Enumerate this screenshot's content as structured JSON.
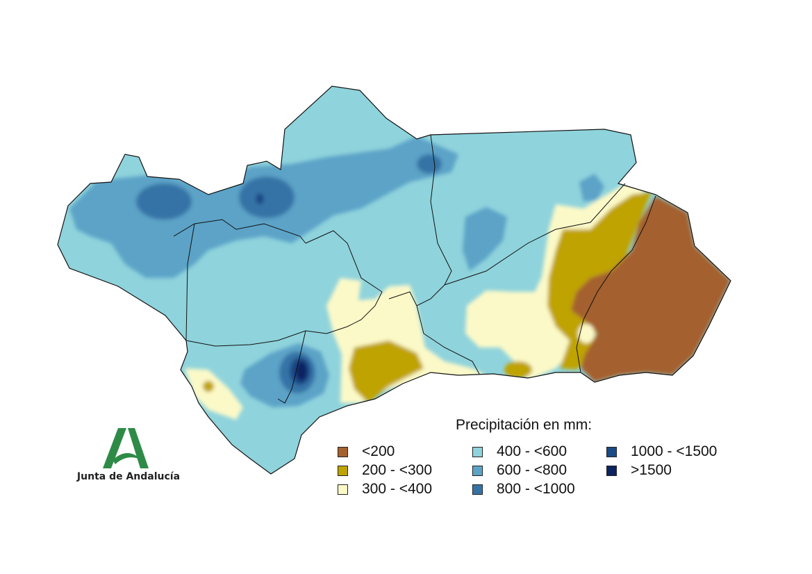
{
  "legend": {
    "title": "Precipitación en mm:",
    "items": [
      {
        "label": "<200",
        "color": "#A4612E"
      },
      {
        "label": "200 - <300",
        "color": "#BFA300"
      },
      {
        "label": "300 - <400",
        "color": "#FCF9C8"
      },
      {
        "label": "400 - <600",
        "color": "#8FD3DC"
      },
      {
        "label": "600 - <800",
        "color": "#5BA3C7"
      },
      {
        "label": "800 - <1000",
        "color": "#3573A6"
      },
      {
        "label": "1000 - <1500",
        "color": "#1C4A87"
      },
      {
        "label": ">1500",
        "color": "#0B2460"
      }
    ]
  },
  "logo": {
    "text": "Junta de Andalucía",
    "color": "#2E8B47"
  }
}
